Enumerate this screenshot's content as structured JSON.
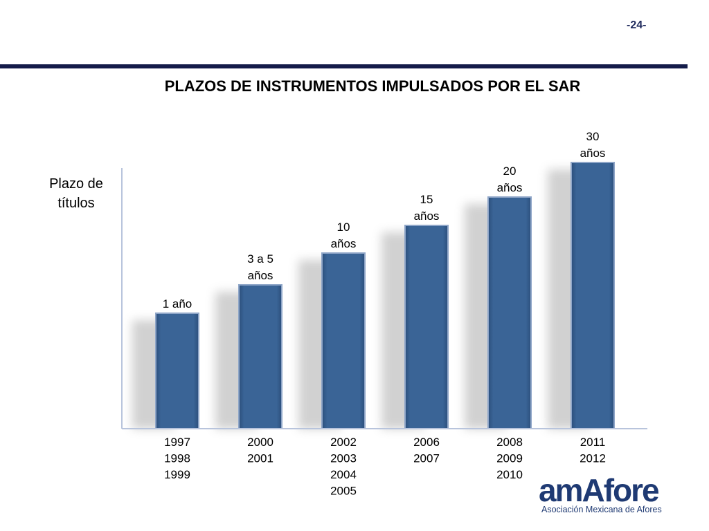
{
  "page": {
    "number": "-24-"
  },
  "chart_data": {
    "type": "bar",
    "title": "PLAZOS DE INSTRUMENTOS IMPULSADOS POR EL SAR",
    "ylabel_lines": [
      "Plazo de",
      "títulos"
    ],
    "xlabel": "",
    "categories": [
      [
        "1997",
        "1998",
        "1999"
      ],
      [
        "2000",
        "2001"
      ],
      [
        "2002",
        "2003",
        "2004",
        "2005"
      ],
      [
        "2006",
        "2007"
      ],
      [
        "2008",
        "2009",
        "2010"
      ],
      [
        "2011",
        "2012"
      ]
    ],
    "values": [
      1,
      3,
      10,
      15,
      20,
      30
    ],
    "data_labels": [
      [
        "1 año"
      ],
      [
        "3 a 5",
        "años"
      ],
      [
        "10",
        "años"
      ],
      [
        "15",
        "años"
      ],
      [
        "20",
        "años"
      ],
      [
        "30",
        "años"
      ]
    ],
    "bar_color": "#3a6496",
    "axis_color": "#b8c4dc",
    "grid": false,
    "legend": "none"
  },
  "logo": {
    "wordmark": "amAfore",
    "tagline": "Asociación Mexicana de Afores"
  }
}
